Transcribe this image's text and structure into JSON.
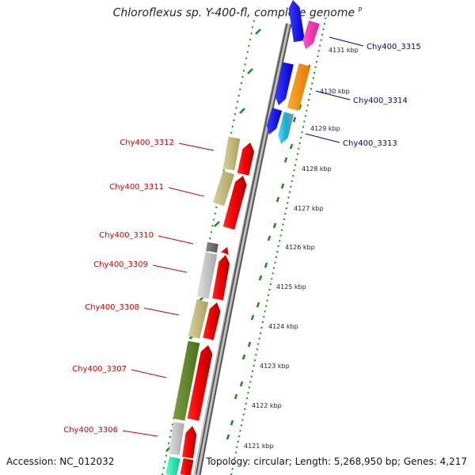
{
  "title": "Chloroflexus sp. Y-400-fl, complete genome",
  "title_marker": "P",
  "accession": "Accession: NC_012032",
  "topology": "Topology: circular; Length: 5,268,950 bp; Genes: 4,217",
  "colors": {
    "backbone": "#8a8a8a",
    "tick": "#1a8a1a",
    "left_label": "#cc0000",
    "right_label": "#00009a"
  },
  "ticks": [
    "4121 kbp",
    "4122 kbp",
    "4123 kbp",
    "4124 kbp",
    "4125 kbp",
    "4126 kbp",
    "4127 kbp",
    "4128 kbp",
    "4129 kbp",
    "4130 kbp",
    "4131 kbp"
  ],
  "left_genes": [
    {
      "label": "Chy400_3312"
    },
    {
      "label": "Chy400_3311"
    },
    {
      "label": "Chy400_3310"
    },
    {
      "label": "Chy400_3309"
    },
    {
      "label": "Chy400_3308"
    },
    {
      "label": "Chy400_3307"
    },
    {
      "label": "Chy400_3306"
    }
  ],
  "right_genes": [
    {
      "label": "Chy400_3315"
    },
    {
      "label": "Chy400_3314"
    },
    {
      "label": "Chy400_3313"
    }
  ]
}
